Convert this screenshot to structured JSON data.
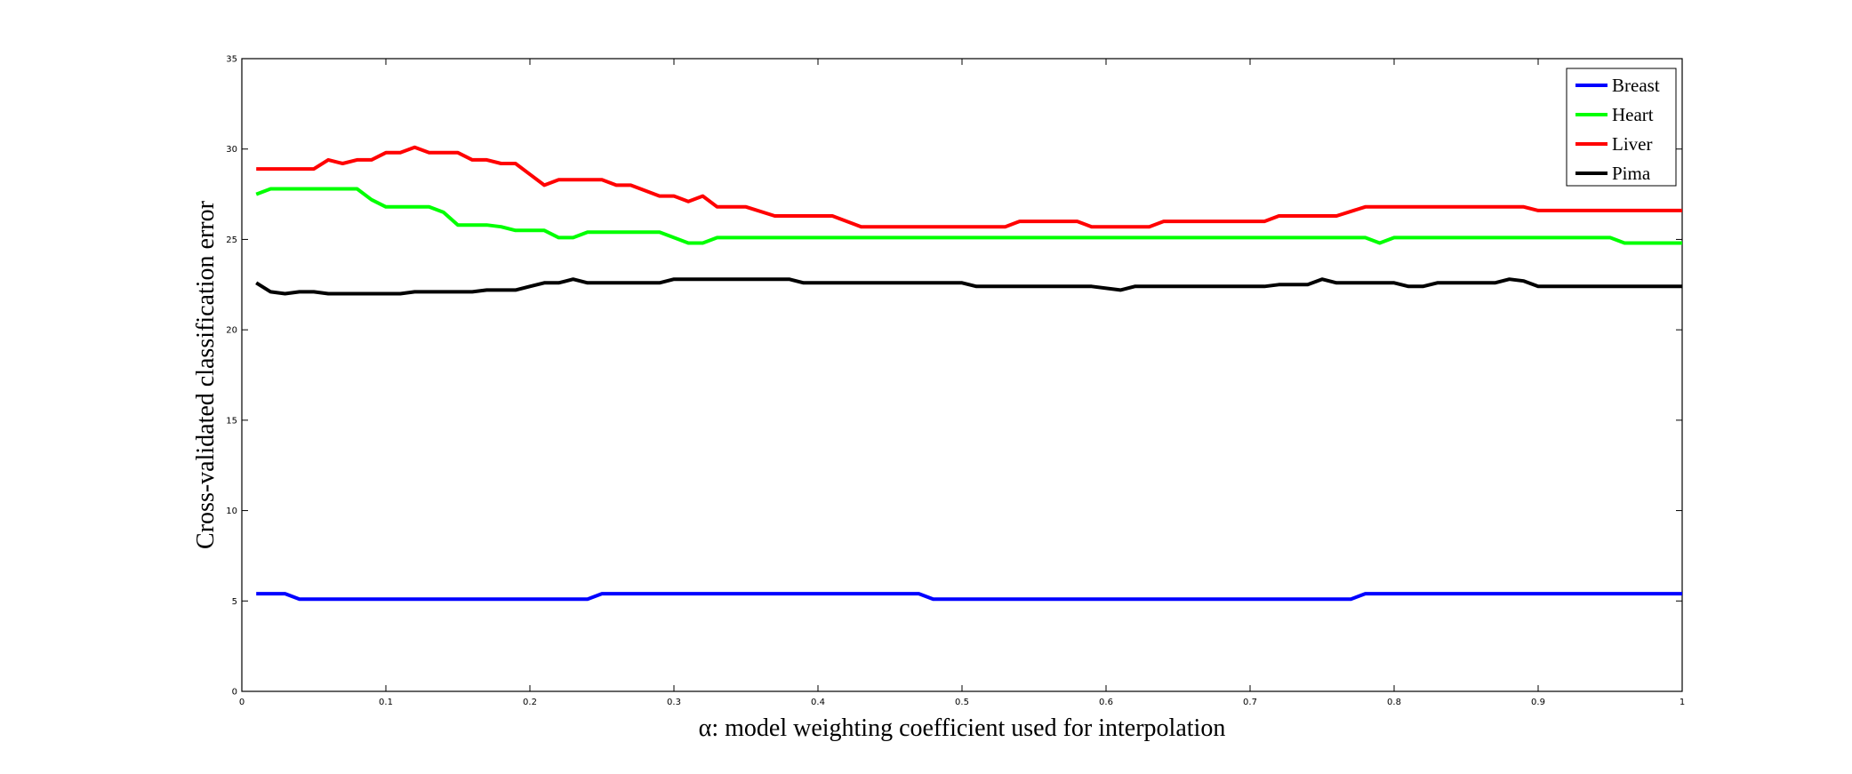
{
  "chart_data": {
    "type": "line",
    "xlabel": "α: model weighting coefficient used for interpolation",
    "ylabel": "Cross-validated classification error",
    "xlim": [
      0,
      1
    ],
    "ylim": [
      0,
      35
    ],
    "xticks": [
      "0",
      "0.1",
      "0.2",
      "0.3",
      "0.4",
      "0.5",
      "0.6",
      "0.7",
      "0.8",
      "0.9",
      "1"
    ],
    "yticks": [
      "0",
      "5",
      "10",
      "15",
      "20",
      "25",
      "30",
      "35"
    ],
    "grid": false,
    "legend_position": "top-right",
    "series": [
      {
        "name": "Breast",
        "color": "#0000ff",
        "points": [
          [
            0.01,
            5.4
          ],
          [
            0.03,
            5.4
          ],
          [
            0.04,
            5.1
          ],
          [
            0.24,
            5.1
          ],
          [
            0.25,
            5.4
          ],
          [
            0.47,
            5.4
          ],
          [
            0.48,
            5.1
          ],
          [
            0.77,
            5.1
          ],
          [
            0.78,
            5.4
          ],
          [
            1.0,
            5.4
          ]
        ]
      },
      {
        "name": "Heart",
        "color": "#00ff00",
        "points": [
          [
            0.01,
            27.5
          ],
          [
            0.02,
            27.8
          ],
          [
            0.08,
            27.8
          ],
          [
            0.09,
            27.2
          ],
          [
            0.1,
            26.8
          ],
          [
            0.13,
            26.8
          ],
          [
            0.14,
            26.5
          ],
          [
            0.15,
            25.8
          ],
          [
            0.17,
            25.8
          ],
          [
            0.18,
            25.7
          ],
          [
            0.19,
            25.5
          ],
          [
            0.21,
            25.5
          ],
          [
            0.22,
            25.1
          ],
          [
            0.23,
            25.1
          ],
          [
            0.24,
            25.4
          ],
          [
            0.29,
            25.4
          ],
          [
            0.31,
            24.8
          ],
          [
            0.32,
            24.8
          ],
          [
            0.33,
            25.1
          ],
          [
            0.37,
            25.1
          ],
          [
            0.78,
            25.1
          ],
          [
            0.79,
            24.8
          ],
          [
            0.8,
            25.1
          ],
          [
            0.95,
            25.1
          ],
          [
            0.96,
            24.8
          ],
          [
            1.0,
            24.8
          ]
        ]
      },
      {
        "name": "Liver",
        "color": "#ff0000",
        "points": [
          [
            0.01,
            28.9
          ],
          [
            0.05,
            28.9
          ],
          [
            0.06,
            29.4
          ],
          [
            0.07,
            29.2
          ],
          [
            0.08,
            29.4
          ],
          [
            0.09,
            29.4
          ],
          [
            0.1,
            29.8
          ],
          [
            0.11,
            29.8
          ],
          [
            0.12,
            30.1
          ],
          [
            0.13,
            29.8
          ],
          [
            0.15,
            29.8
          ],
          [
            0.16,
            29.4
          ],
          [
            0.17,
            29.4
          ],
          [
            0.18,
            29.2
          ],
          [
            0.19,
            29.2
          ],
          [
            0.2,
            28.6
          ],
          [
            0.21,
            28.0
          ],
          [
            0.22,
            28.3
          ],
          [
            0.25,
            28.3
          ],
          [
            0.26,
            28.0
          ],
          [
            0.27,
            28.0
          ],
          [
            0.29,
            27.4
          ],
          [
            0.3,
            27.4
          ],
          [
            0.31,
            27.1
          ],
          [
            0.32,
            27.4
          ],
          [
            0.33,
            26.8
          ],
          [
            0.35,
            26.8
          ],
          [
            0.37,
            26.3
          ],
          [
            0.41,
            26.3
          ],
          [
            0.43,
            25.7
          ],
          [
            0.53,
            25.7
          ],
          [
            0.54,
            26.0
          ],
          [
            0.58,
            26.0
          ],
          [
            0.59,
            25.7
          ],
          [
            0.63,
            25.7
          ],
          [
            0.64,
            26.0
          ],
          [
            0.71,
            26.0
          ],
          [
            0.72,
            26.3
          ],
          [
            0.76,
            26.3
          ],
          [
            0.78,
            26.8
          ],
          [
            0.89,
            26.8
          ],
          [
            0.9,
            26.6
          ],
          [
            1.0,
            26.6
          ]
        ]
      },
      {
        "name": "Pima",
        "color": "#000000",
        "points": [
          [
            0.01,
            22.6
          ],
          [
            0.02,
            22.1
          ],
          [
            0.03,
            22.0
          ],
          [
            0.04,
            22.1
          ],
          [
            0.05,
            22.1
          ],
          [
            0.06,
            22.0
          ],
          [
            0.11,
            22.0
          ],
          [
            0.12,
            22.1
          ],
          [
            0.16,
            22.1
          ],
          [
            0.17,
            22.2
          ],
          [
            0.19,
            22.2
          ],
          [
            0.2,
            22.4
          ],
          [
            0.21,
            22.6
          ],
          [
            0.22,
            22.6
          ],
          [
            0.23,
            22.8
          ],
          [
            0.24,
            22.6
          ],
          [
            0.29,
            22.6
          ],
          [
            0.3,
            22.8
          ],
          [
            0.38,
            22.8
          ],
          [
            0.39,
            22.6
          ],
          [
            0.5,
            22.6
          ],
          [
            0.51,
            22.4
          ],
          [
            0.59,
            22.4
          ],
          [
            0.61,
            22.2
          ],
          [
            0.62,
            22.4
          ],
          [
            0.71,
            22.4
          ],
          [
            0.72,
            22.5
          ],
          [
            0.74,
            22.5
          ],
          [
            0.75,
            22.8
          ],
          [
            0.76,
            22.6
          ],
          [
            0.8,
            22.6
          ],
          [
            0.81,
            22.4
          ],
          [
            0.82,
            22.4
          ],
          [
            0.83,
            22.6
          ],
          [
            0.87,
            22.6
          ],
          [
            0.88,
            22.8
          ],
          [
            0.89,
            22.7
          ],
          [
            0.9,
            22.4
          ],
          [
            1.0,
            22.4
          ]
        ]
      }
    ]
  }
}
